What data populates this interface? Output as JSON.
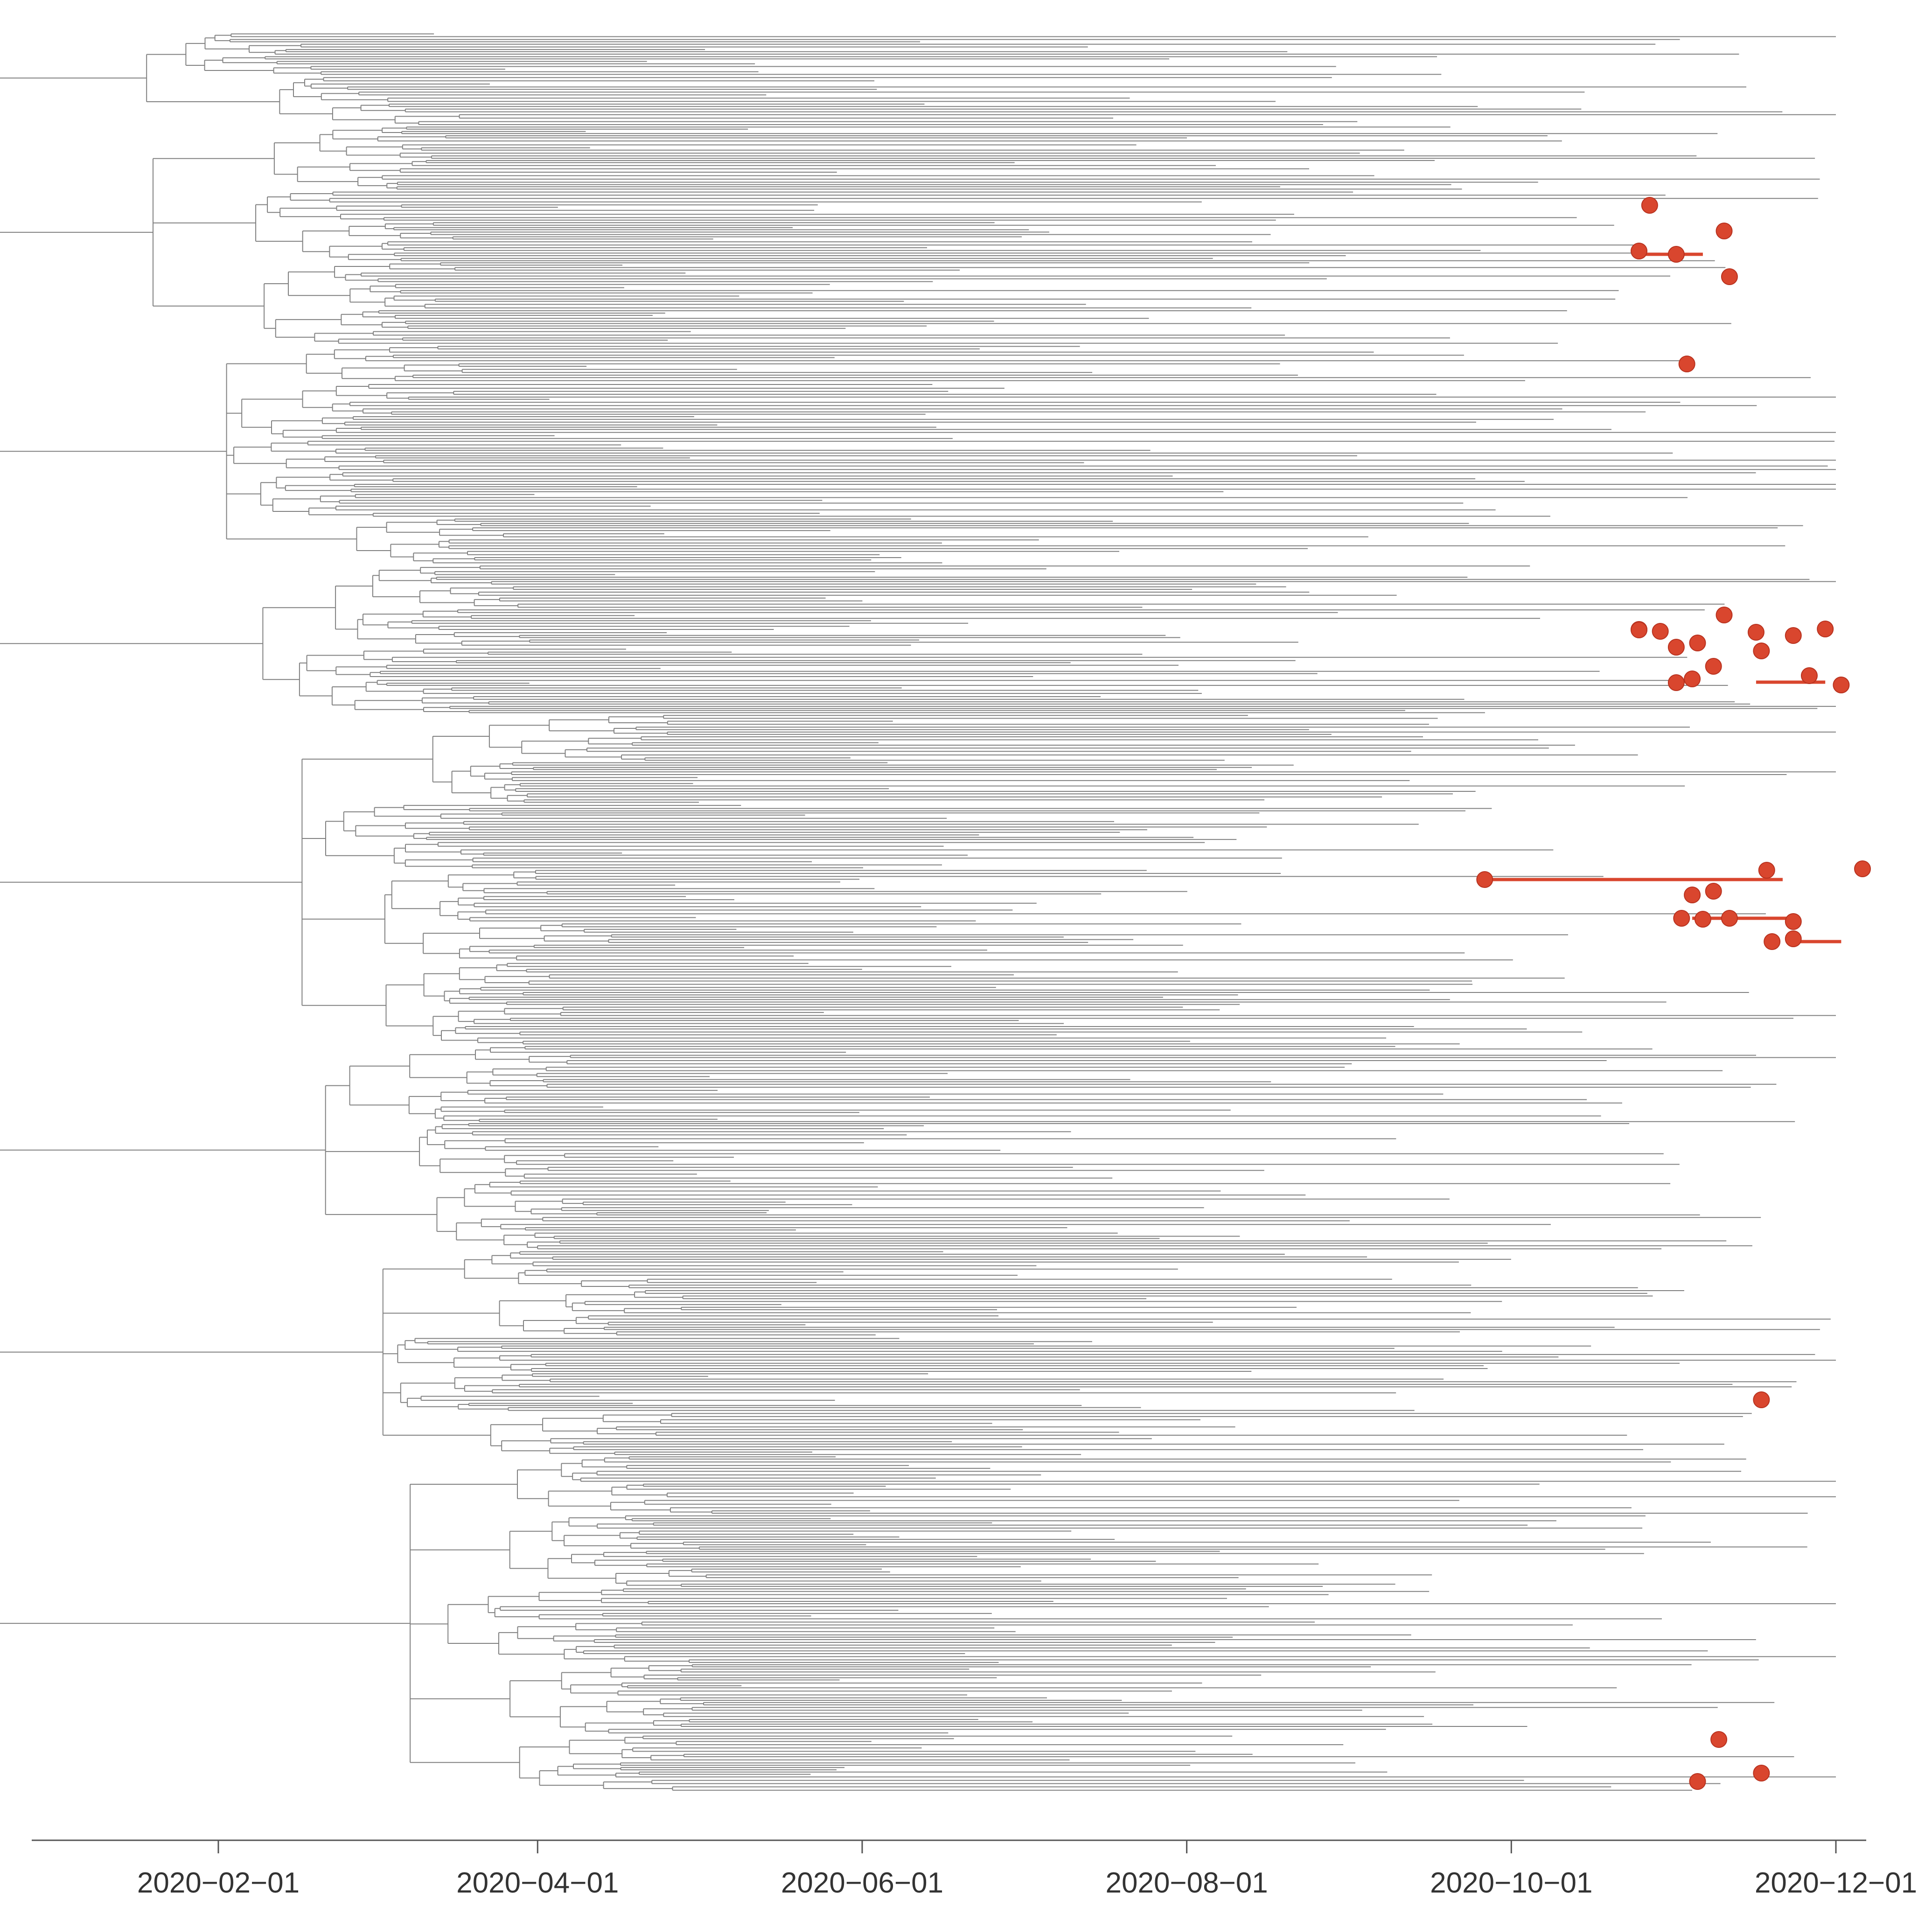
{
  "chart_data": {
    "type": "phylogenetic-tree",
    "title": "",
    "xlabel": "",
    "ylabel": "",
    "x_axis": {
      "scale": "date",
      "range": [
        "2020-01-01",
        "2020-12-01"
      ],
      "ticks": [
        "2020-02-01",
        "2020-04-01",
        "2020-06-01",
        "2020-08-01",
        "2020-10-01",
        "2020-12-01"
      ],
      "tick_labels": [
        "2020−02−01",
        "2020−04−01",
        "2020−06−01",
        "2020−08−01",
        "2020−10−01",
        "2020−12−01"
      ]
    },
    "grid": false,
    "legend": "none",
    "colors": {
      "branch": "#808080",
      "highlight": "#d9462e",
      "axis": "#555555"
    },
    "highlighted_tips": [
      {
        "date": "2020-10-27",
        "group": 1
      },
      {
        "date": "2020-11-10",
        "group": 1
      },
      {
        "date": "2020-10-25",
        "group": 1
      },
      {
        "date": "2020-11-01",
        "group": 1
      },
      {
        "date": "2020-11-11",
        "group": 1
      },
      {
        "date": "2020-11-03",
        "group": 2
      },
      {
        "date": "2020-11-10",
        "group": 3
      },
      {
        "date": "2020-10-29",
        "group": 3
      },
      {
        "date": "2020-10-25",
        "group": 3
      },
      {
        "date": "2020-11-16",
        "group": 3
      },
      {
        "date": "2020-11-23",
        "group": 3
      },
      {
        "date": "2020-11-29",
        "group": 3
      },
      {
        "date": "2020-10-25",
        "group": 3
      },
      {
        "date": "2020-11-05",
        "group": 3
      },
      {
        "date": "2020-11-17",
        "group": 3
      },
      {
        "date": "2020-11-01",
        "group": 3
      },
      {
        "date": "2020-11-08",
        "group": 3
      },
      {
        "date": "2020-11-26",
        "group": 3
      },
      {
        "date": "2020-12-02",
        "group": 3
      },
      {
        "date": "2020-11-01",
        "group": 3
      },
      {
        "date": "2020-11-04",
        "group": 3
      },
      {
        "date": "2020-09-26",
        "group": 4
      },
      {
        "date": "2020-11-18",
        "group": 4
      },
      {
        "date": "2020-12-06",
        "group": 4
      },
      {
        "date": "2020-11-04",
        "group": 4
      },
      {
        "date": "2020-11-08",
        "group": 4
      },
      {
        "date": "2020-11-02",
        "group": 4
      },
      {
        "date": "2020-11-06",
        "group": 4
      },
      {
        "date": "2020-11-11",
        "group": 4
      },
      {
        "date": "2020-11-23",
        "group": 4
      },
      {
        "date": "2020-11-23",
        "group": 4
      },
      {
        "date": "2020-11-19",
        "group": 4
      },
      {
        "date": "2020-11-17",
        "group": 5
      },
      {
        "date": "2020-11-09",
        "group": 6
      },
      {
        "date": "2020-11-17",
        "group": 6
      },
      {
        "date": "2020-11-05",
        "group": 6
      }
    ]
  }
}
